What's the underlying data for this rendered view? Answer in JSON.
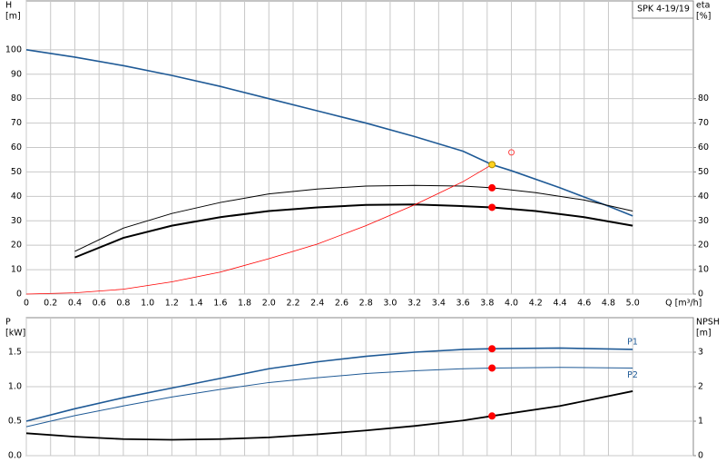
{
  "chart_data": [
    {
      "type": "line",
      "title": "SPK 4-19/19",
      "xlabel": "Q [m³/h]",
      "ylabel": [
        "H",
        "[m]"
      ],
      "y2label": [
        "eta",
        "[%]"
      ],
      "xlim": [
        0,
        5.5
      ],
      "ylim": [
        0,
        120
      ],
      "y2lim": [
        0,
        120
      ],
      "grid": true,
      "xticks": [
        0,
        0.2,
        0.4,
        0.6,
        0.8,
        {
          "value": 1,
          "label": "1.0"
        },
        1.2,
        1.4,
        1.6,
        1.8,
        {
          "value": 2,
          "label": "2.0"
        },
        2.2,
        2.4,
        2.6,
        2.8,
        {
          "value": 3,
          "label": "3.0"
        },
        3.2,
        3.4,
        3.6,
        3.8,
        {
          "value": 4,
          "label": "4.0"
        },
        4.2,
        4.4,
        4.6,
        4.8,
        {
          "value": 5,
          "label": "5.0"
        }
      ],
      "yticks": [
        0,
        10,
        20,
        30,
        40,
        50,
        60,
        70,
        80,
        90,
        100
      ],
      "y2ticks": [
        0,
        10,
        20,
        30,
        40,
        50,
        60,
        70,
        80
      ],
      "series": [
        {
          "color": "#1f5a96",
          "width": 1.6,
          "x": [
            0,
            0.4,
            0.8,
            1.2,
            1.6,
            2.0,
            2.4,
            2.8,
            3.2,
            3.6,
            3.84,
            4.0,
            4.4,
            4.8,
            5.0
          ],
          "values": [
            100,
            97,
            93.5,
            89.5,
            85,
            80,
            75,
            70,
            64.5,
            58.5,
            53,
            50.5,
            43.5,
            36,
            32
          ]
        },
        {
          "color": "#000000",
          "width": 1,
          "axis": "y2",
          "x": [
            0.4,
            0.8,
            1.2,
            1.6,
            2.0,
            2.4,
            2.8,
            3.2,
            3.6,
            3.84,
            4.2,
            4.6,
            5.0
          ],
          "values": [
            17.5,
            27,
            33,
            37.5,
            41,
            43,
            44.2,
            44.5,
            44.2,
            43.5,
            41.5,
            38.5,
            34
          ]
        },
        {
          "color": "#000000",
          "width": 2,
          "axis": "y2",
          "x": [
            0.4,
            0.8,
            1.2,
            1.6,
            2.0,
            2.4,
            2.8,
            3.2,
            3.6,
            3.84,
            4.2,
            4.6,
            5.0
          ],
          "values": [
            15,
            23,
            28,
            31.5,
            34,
            35.5,
            36.5,
            36.7,
            36,
            35.5,
            34,
            31.5,
            28
          ]
        },
        {
          "color": "#ff0000",
          "width": 0.8,
          "x": [
            0,
            0.4,
            0.8,
            1.2,
            1.6,
            2.0,
            2.4,
            2.8,
            3.2,
            3.6,
            3.84
          ],
          "values": [
            0,
            0.5,
            2,
            5,
            9,
            14.5,
            20.5,
            28,
            36.5,
            46,
            53
          ]
        }
      ],
      "markers": [
        {
          "x": 3.84,
          "value": 53,
          "color": "#ffd21f",
          "stroke": "#b08a00",
          "fill": true
        },
        {
          "x": 3.84,
          "value": 43.5,
          "color": "#ff0000",
          "fill": true
        },
        {
          "x": 3.84,
          "value": 35.5,
          "color": "#ff0000",
          "fill": true
        },
        {
          "x": 4.0,
          "value": 58,
          "color": "#ff4444",
          "fill": false
        }
      ]
    },
    {
      "type": "line",
      "ylabel": [
        "P",
        "[kW]"
      ],
      "y2label": [
        "NPSH",
        "[m]"
      ],
      "xlim": [
        0,
        5.5
      ],
      "ylim": [
        0,
        2
      ],
      "y2lim": [
        0,
        4
      ],
      "grid": true,
      "yticks": [
        {
          "value": 0,
          "label": "0.0"
        },
        0.5,
        {
          "value": 1,
          "label": "1.0"
        },
        1.5
      ],
      "y2ticks": [
        0,
        1,
        2,
        3
      ],
      "series": [
        {
          "name": "P1",
          "color": "#1f5a96",
          "width": 1.6,
          "x": [
            0,
            0.4,
            0.8,
            1.2,
            1.6,
            2.0,
            2.4,
            2.8,
            3.2,
            3.6,
            3.84,
            4.4,
            5.0
          ],
          "values": [
            0.5,
            0.68,
            0.84,
            0.98,
            1.12,
            1.26,
            1.36,
            1.44,
            1.5,
            1.54,
            1.55,
            1.56,
            1.54
          ]
        },
        {
          "name": "P2",
          "color": "#1f5a96",
          "width": 1,
          "x": [
            0,
            0.4,
            0.8,
            1.2,
            1.6,
            2.0,
            2.4,
            2.8,
            3.2,
            3.6,
            3.84,
            4.4,
            5.0
          ],
          "values": [
            0.42,
            0.58,
            0.72,
            0.85,
            0.96,
            1.06,
            1.13,
            1.19,
            1.23,
            1.26,
            1.27,
            1.28,
            1.27
          ]
        },
        {
          "color": "#000000",
          "width": 1.8,
          "axis": "y2",
          "x": [
            0,
            0.4,
            0.8,
            1.2,
            1.6,
            2.0,
            2.4,
            2.8,
            3.2,
            3.6,
            3.84,
            4.4,
            5.0
          ],
          "values": [
            0.65,
            0.55,
            0.48,
            0.46,
            0.48,
            0.53,
            0.62,
            0.73,
            0.86,
            1.02,
            1.15,
            1.44,
            1.87
          ]
        }
      ],
      "markers": [
        {
          "x": 3.84,
          "value": 1.55,
          "color": "#ff0000",
          "fill": true
        },
        {
          "x": 3.84,
          "value": 1.27,
          "color": "#ff0000",
          "fill": true
        },
        {
          "x": 3.84,
          "value": 1.15,
          "color": "#ff0000",
          "fill": true,
          "axis": "y2"
        }
      ]
    }
  ]
}
